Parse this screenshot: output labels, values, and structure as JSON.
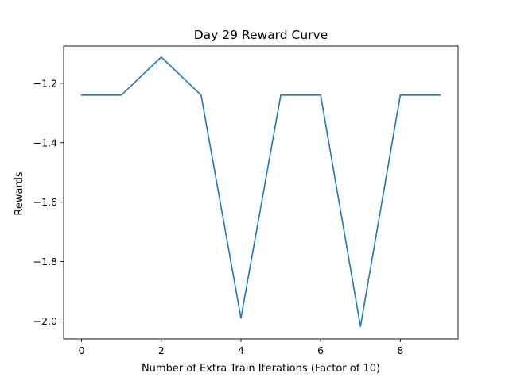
{
  "chart_data": {
    "type": "line",
    "title": "Day 29 Reward Curve",
    "xlabel": "Number of Extra Train Iterations (Factor of 10)",
    "ylabel": "Rewards",
    "xlim": [
      -0.45,
      9.45
    ],
    "ylim": [
      -2.06,
      -1.075
    ],
    "xticks": [
      0,
      2,
      4,
      6,
      8
    ],
    "xtick_labels": [
      "0",
      "2",
      "4",
      "6",
      "8"
    ],
    "yticks": [
      -2.0,
      -1.8,
      -1.6,
      -1.4,
      -1.2
    ],
    "ytick_labels": [
      "−2.0",
      "−1.8",
      "−1.6",
      "−1.4",
      "−1.2"
    ],
    "grid": false,
    "series": [
      {
        "color": "#1f77b4",
        "x": [
          0,
          1,
          2,
          3,
          4,
          5,
          6,
          7,
          8,
          9
        ],
        "y": [
          -1.24,
          -1.24,
          -1.112,
          -1.24,
          -1.99,
          -1.24,
          -1.24,
          -2.018,
          -1.24,
          -1.24
        ]
      }
    ]
  }
}
